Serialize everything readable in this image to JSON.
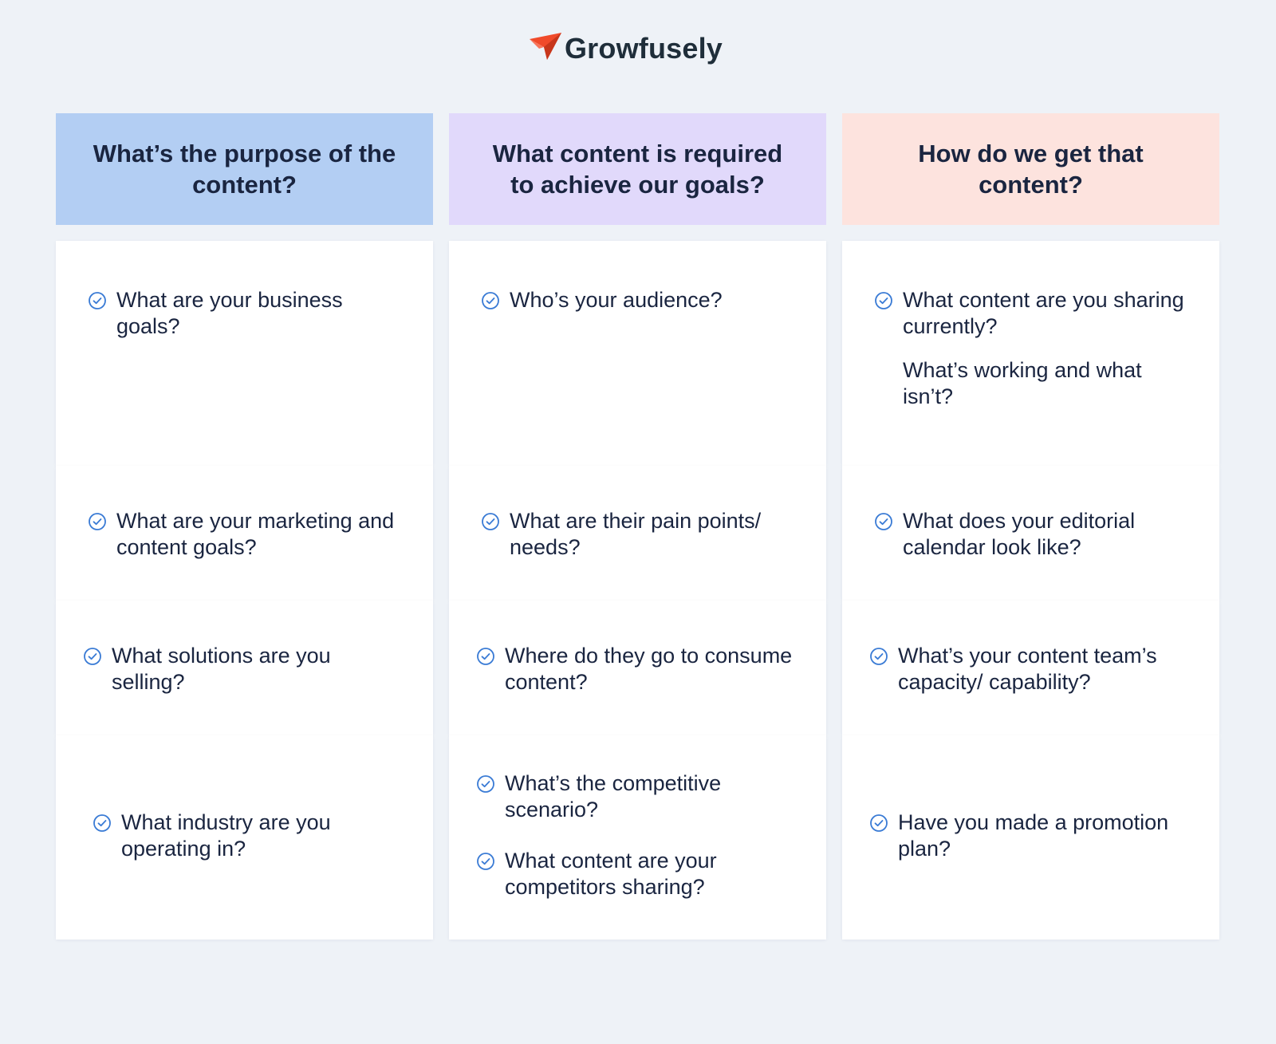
{
  "brand": {
    "name": "Growfusely",
    "accent_color": "#f04a2a",
    "icon": "paper-plane-icon"
  },
  "columns": [
    {
      "header": "What’s the purpose of the content?",
      "color": "#b3cef3"
    },
    {
      "header": "What content is required to achieve our goals?",
      "color": "#e1d9fb"
    },
    {
      "header": "How do we get that content?",
      "color": "#fde3de"
    }
  ],
  "rows": [
    [
      {
        "items": [
          "What are your business goals?"
        ]
      },
      {
        "items": [
          "Who’s your audience?"
        ]
      },
      {
        "items": [
          "What content are you sharing currently?"
        ],
        "note": "What’s working and what isn’t?"
      }
    ],
    [
      {
        "items": [
          "What are your marketing and content goals?"
        ]
      },
      {
        "items": [
          "What are their pain points/ needs?"
        ]
      },
      {
        "items": [
          "What does your editorial calendar look like?"
        ]
      }
    ],
    [
      {
        "items": [
          "What solutions are you selling?"
        ]
      },
      {
        "items": [
          "Where do they go to consume content?"
        ]
      },
      {
        "items": [
          "What’s your content team’s capacity/ capability?"
        ]
      }
    ],
    [
      {
        "items": [
          "What industry are you operating in?"
        ]
      },
      {
        "items": [
          "What’s the competitive scenario?",
          "What content are your competitors sharing?"
        ]
      },
      {
        "items": [
          "Have you made a promotion plan?"
        ]
      }
    ]
  ],
  "check_icon": "check-circle-icon",
  "check_color": "#3a7bd5"
}
